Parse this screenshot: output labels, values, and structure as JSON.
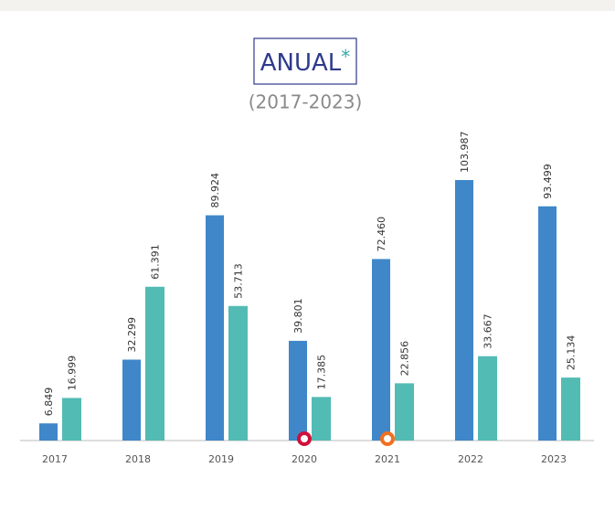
{
  "chart_data": {
    "type": "bar",
    "title": "ANUAL",
    "title_suffix": "*",
    "subtitle": "(2017-2023)",
    "categories": [
      "2017",
      "2018",
      "2019",
      "2020",
      "2021",
      "2022",
      "2023"
    ],
    "series": [
      {
        "color": "#3f87c9",
        "values": [
          6849,
          32299,
          89924,
          39801,
          72460,
          103987,
          93499
        ],
        "value_labels": [
          "6.849",
          "32.299",
          "89.924",
          "39.801",
          "72.460",
          "103.987",
          "93.499"
        ]
      },
      {
        "color": "#52bbb4",
        "values": [
          16999,
          61391,
          53713,
          17385,
          22856,
          33667,
          25134
        ],
        "value_labels": [
          "16.999",
          "61.391",
          "53.713",
          "17.385",
          "22.856",
          "33.667",
          "25.134"
        ]
      }
    ]
  }
}
